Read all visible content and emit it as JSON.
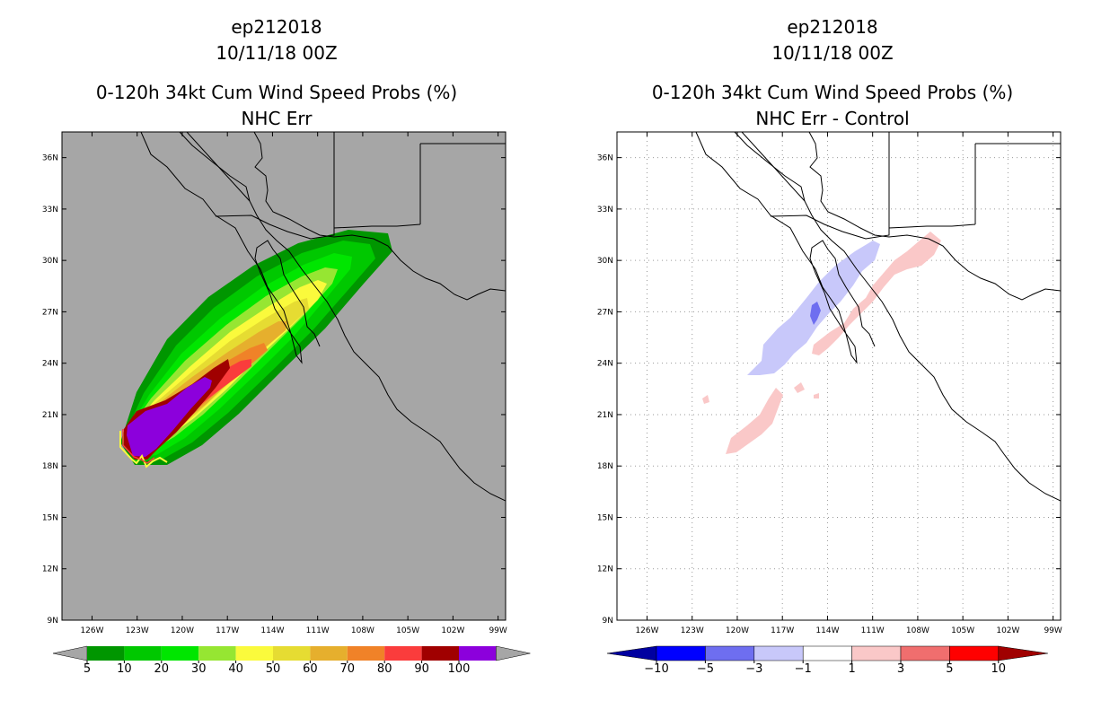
{
  "chart_data": [
    {
      "type": "heatmap",
      "title_lines": [
        "ep212018",
        "10/11/18 00Z",
        "0-120h 34kt Cum Wind Speed Probs (%)",
        "NHC Err"
      ],
      "x_ticks": [
        "126W",
        "123W",
        "120W",
        "117W",
        "114W",
        "111W",
        "108W",
        "105W",
        "102W",
        "99W"
      ],
      "y_ticks": [
        "9N",
        "12N",
        "15N",
        "18N",
        "21N",
        "24N",
        "27N",
        "30N",
        "33N",
        "36N"
      ],
      "xlim": [
        -128,
        -98.5
      ],
      "ylim": [
        9,
        37.5
      ],
      "grid": false,
      "background": "#a6a6a6",
      "colorbar": {
        "labels": [
          "5",
          "10",
          "20",
          "30",
          "40",
          "50",
          "60",
          "70",
          "80",
          "90",
          "100"
        ],
        "colors": [
          "#009600",
          "#00c800",
          "#00e600",
          "#96e632",
          "#fafa3c",
          "#e6dc32",
          "#e6af2d",
          "#f08228",
          "#fa3c3c",
          "#a00000",
          "#8c00dc"
        ],
        "extend_color": "#a6a6a6"
      }
    },
    {
      "type": "heatmap",
      "title_lines": [
        "ep212018",
        "10/11/18 00Z",
        "0-120h 34kt Cum Wind Speed Probs (%)",
        "NHC Err - Control"
      ],
      "x_ticks": [
        "126W",
        "123W",
        "120W",
        "117W",
        "114W",
        "111W",
        "108W",
        "105W",
        "102W",
        "99W"
      ],
      "y_ticks": [
        "9N",
        "12N",
        "15N",
        "18N",
        "21N",
        "24N",
        "27N",
        "30N",
        "33N",
        "36N"
      ],
      "xlim": [
        -128,
        -98.5
      ],
      "ylim": [
        9,
        37.5
      ],
      "grid": true,
      "background": "#ffffff",
      "colorbar": {
        "labels": [
          "-10",
          "-5",
          "-3",
          "-1",
          "1",
          "3",
          "5",
          "10"
        ],
        "colors": [
          "#0000a0",
          "#0000ff",
          "#6e6ef0",
          "#c8c8fa",
          "#ffffff",
          "#fac8c8",
          "#f06e6e",
          "#ff0000",
          "#a00000"
        ]
      }
    }
  ]
}
